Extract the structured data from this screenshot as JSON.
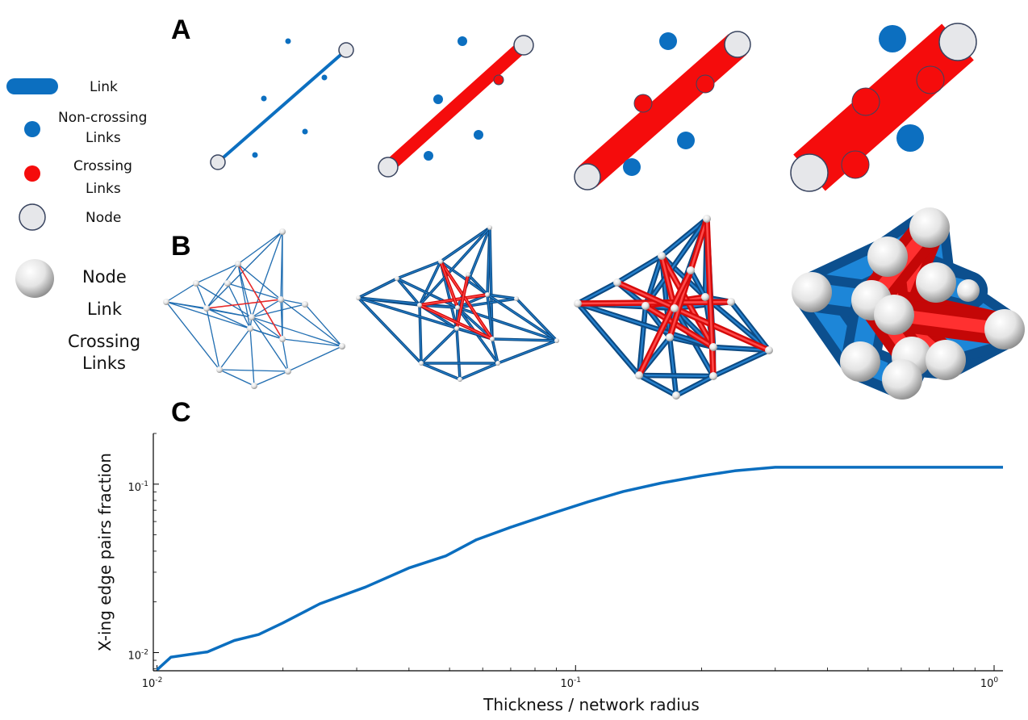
{
  "panels": {
    "a": "A",
    "b": "B",
    "c": "C"
  },
  "legend_a": {
    "link": "Link",
    "noncrossing_line1": "Non-crossing",
    "noncrossing_line2": "Links",
    "crossing_line1": "Crossing",
    "crossing_line2": "Links",
    "node": "Node"
  },
  "legend_b": {
    "node": "Node",
    "link": "Link",
    "crossing_line1": "Crossing",
    "crossing_line2": "Links"
  },
  "colors": {
    "link_blue": "#0c6fc0",
    "link_dark_blue": "#0d4a82",
    "crossing_red": "#f50c0c",
    "node_fill": "#e6e7ea",
    "node_stroke": "#3a4560",
    "curve": "#0b6ebf"
  },
  "chart_data": {
    "type": "line",
    "xscale": "log",
    "yscale": "log",
    "xlabel": "Thickness / network radius",
    "ylabel": "X-ing edge pairs fraction",
    "xlim": [
      0.0098,
      1.05
    ],
    "ylim": [
      0.0078,
      0.2
    ],
    "x_ticks": [
      {
        "base": "10",
        "exp": "-2",
        "value": 0.01
      },
      {
        "base": "10",
        "exp": "-1",
        "value": 0.1
      },
      {
        "base": "10",
        "exp": "0",
        "value": 1
      }
    ],
    "y_ticks": [
      {
        "base": "10",
        "exp": "-2",
        "value": 0.01
      },
      {
        "base": "10",
        "exp": "-1",
        "value": 0.1
      }
    ],
    "series": [
      {
        "x": [
          0.01,
          0.0108,
          0.0132,
          0.0153,
          0.0175,
          0.02,
          0.0245,
          0.0315,
          0.04,
          0.049,
          0.058,
          0.07,
          0.087,
          0.107,
          0.13,
          0.16,
          0.2,
          0.24,
          0.3,
          0.38,
          0.5,
          0.7,
          1.05
        ],
        "y": [
          0.0079,
          0.0094,
          0.0101,
          0.0118,
          0.0128,
          0.015,
          0.0195,
          0.0245,
          0.0318,
          0.0375,
          0.0468,
          0.0555,
          0.0665,
          0.0785,
          0.0905,
          0.1015,
          0.112,
          0.12,
          0.126,
          0.126,
          0.126,
          0.126,
          0.126
        ]
      }
    ]
  }
}
